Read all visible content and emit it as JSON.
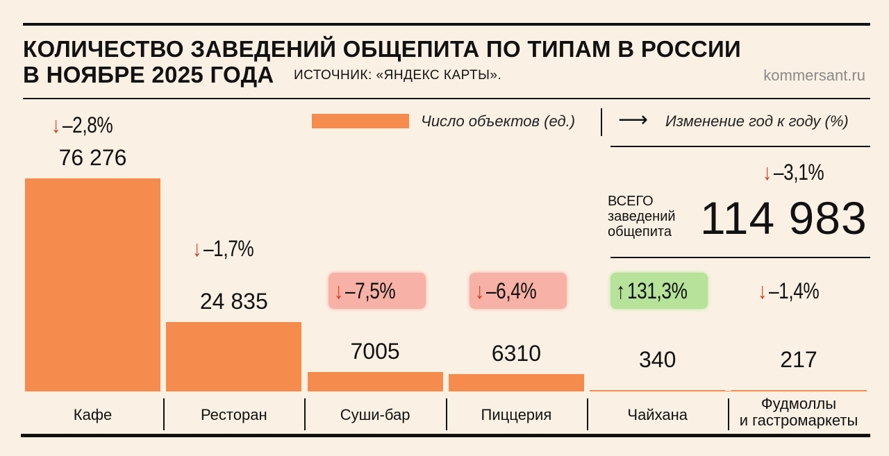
{
  "header": {
    "title_line1": "КОЛИЧЕСТВО ЗАВЕДЕНИЙ ОБЩЕПИТА ПО ТИПАМ В РОССИИ",
    "title_line2": "В НОЯБРЕ 2025 ГОДА",
    "source": "ИСТОЧНИК: «ЯНДЕКС КАРТЫ».",
    "site": "kommersant.ru"
  },
  "legend": {
    "bars_label": "Число объектов (ед.)",
    "change_label": "Изменение год к году (%)",
    "arrow_glyph": "⟶"
  },
  "total": {
    "label_line1": "ВСЕГО",
    "label_line2": "заведений",
    "label_line3": "общепита",
    "value": "114 983",
    "change": "–3,1%",
    "direction": "down"
  },
  "colors": {
    "bar": "#f58b4c",
    "down_arrow": "#d9361a",
    "up_arrow": "#111111",
    "badge_red": "#f7b1a6",
    "badge_green": "#b6e29a",
    "rule": "#111111"
  },
  "chart_data": {
    "type": "bar",
    "title": "КОЛИЧЕСТВО ЗАВЕДЕНИЙ ОБЩЕПИТА ПО ТИПАМ В РОССИИ В НОЯБРЕ 2025 ГОДА",
    "categories": [
      "Кафе",
      "Ресторан",
      "Суши-бар",
      "Пиццерия",
      "Чайхана",
      "Фудмоллы и гастромаркеты"
    ],
    "category_lines": [
      [
        "Кафе"
      ],
      [
        "Ресторан"
      ],
      [
        "Суши-бар"
      ],
      [
        "Пиццерия"
      ],
      [
        "Чайхана"
      ],
      [
        "Фудмоллы",
        "и гастромаркеты"
      ]
    ],
    "values": [
      76276,
      24835,
      7005,
      6310,
      340,
      217
    ],
    "value_labels": [
      "76 276",
      "24 835",
      "7005",
      "6310",
      "340",
      "217"
    ],
    "changes": [
      -2.8,
      -1.7,
      -7.5,
      -6.4,
      131.3,
      -1.4
    ],
    "change_labels": [
      "–2,8%",
      "–1,7%",
      "–7,5%",
      "–6,4%",
      "131,3%",
      "–1,4%"
    ],
    "highlight": [
      "none",
      "none",
      "red",
      "red",
      "green",
      "none"
    ],
    "ylim": [
      0,
      76276
    ],
    "xlabel": "",
    "ylabel": "Число объектов (ед.)"
  }
}
